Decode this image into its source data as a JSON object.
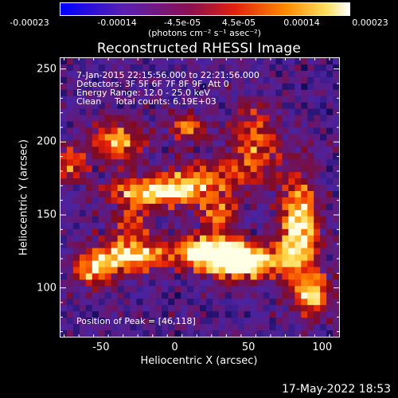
{
  "colorbar": {
    "ticks": [
      "-0.00023",
      "-0.00014",
      "-4.5e-05",
      "4.5e-05",
      "0.00014",
      "0.00023"
    ],
    "units": "(photons cm⁻² s⁻¹ asec⁻²)",
    "range": [
      -0.00023,
      0.00023
    ]
  },
  "chart_data": {
    "type": "heatmap",
    "title": "Reconstructed RHESSI Image",
    "xlabel": "Heliocentric X (arcsec)",
    "ylabel": "Heliocentric Y (arcsec)",
    "xlim": [
      -78,
      112
    ],
    "ylim": [
      66,
      258
    ],
    "x_ticks": [
      "-50",
      "0",
      "50",
      "100"
    ],
    "y_ticks": [
      "100",
      "150",
      "200",
      "250"
    ],
    "x_tick_values": [
      -50,
      0,
      50,
      100
    ],
    "y_tick_values": [
      100,
      150,
      200,
      250
    ],
    "colormap": "blue-purple-red-yellow-white",
    "peak": [
      46,
      118
    ],
    "annotations": {
      "time": "7-Jan-2015 22:15:56.000 to 22:21:56.000",
      "detectors": "Detectors: 3F 5F 6F 7F 8F 9F, Att 0",
      "energy": "Energy Range: 12.0 - 25.0 keV",
      "clean_label": "Clean",
      "total_counts": "Total counts: 6.19E+03",
      "peak_text": "Position of Peak = [46,118]"
    }
  },
  "timestamp": "17-May-2022 18:53"
}
